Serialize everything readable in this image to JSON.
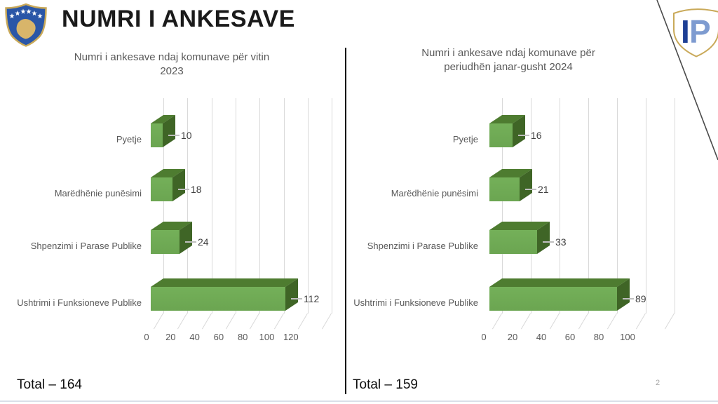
{
  "slide": {
    "title": "NUMRI I ANKESAVE",
    "page_number": "2",
    "ip_logo": {
      "i": "I",
      "p": "P"
    },
    "kosovo_emblem": "kosovo-coat-of-arms"
  },
  "colors": {
    "bar_front": "#6ba551",
    "bar_front_light": "#74b059",
    "bar_top": "#4e7c30",
    "bar_side": "#3f6526",
    "grid": "#d9d9d9",
    "chart_text": "#595959",
    "title_text": "#1a1a1a",
    "emblem_blue": "#2a56a7",
    "emblem_gold": "#c9a959",
    "emblem_map_gold": "#d8b56a",
    "ip_dark_blue": "#1e3f94",
    "ip_light_blue": "#7e9bd0",
    "divider": "#111111"
  },
  "chart_data": [
    {
      "type": "bar",
      "orientation": "horizontal",
      "style": "3d",
      "title": "Numri i ankesave ndaj komunave për vitin 2023",
      "title_lines": [
        "Numri i ankesave ndaj komunave për vitin",
        "2023"
      ],
      "categories": [
        "Pyetje",
        "Marëdhënie punësimi",
        "Shpenzimi i Parase Publike",
        "Ushtrimi i Funksioneve Publike"
      ],
      "values": [
        10,
        18,
        24,
        112
      ],
      "xticks": [
        0,
        20,
        40,
        60,
        80,
        100,
        120
      ],
      "xlim": [
        0,
        140
      ],
      "grid": true,
      "legend": false,
      "total_label": "Total – 164"
    },
    {
      "type": "bar",
      "orientation": "horizontal",
      "style": "3d",
      "title": "Numri i ankesave ndaj komunave për periudhën janar-gusht 2024",
      "title_lines": [
        "Numri i ankesave ndaj komunave për",
        "periudhën janar-gusht 2024"
      ],
      "categories": [
        "Pyetje",
        "Marëdhënie punësimi",
        "Shpenzimi i Parase Publike",
        "Ushtrimi i Funksioneve Publike"
      ],
      "values": [
        16,
        21,
        33,
        89
      ],
      "xticks": [
        0,
        20,
        40,
        60,
        80,
        100
      ],
      "xlim": [
        0,
        120
      ],
      "grid": true,
      "legend": false,
      "total_label": "Total – 159"
    }
  ]
}
